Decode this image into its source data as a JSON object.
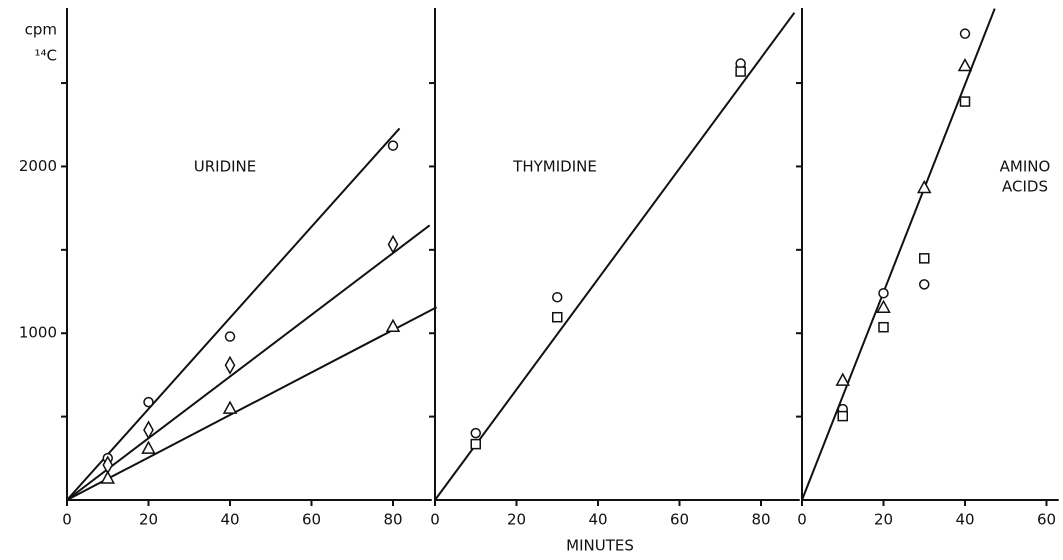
{
  "xlabel": "MINUTES",
  "chart_data": [
    {
      "type": "scatter",
      "label": [
        "URIDINE"
      ],
      "ylabel": [
        "cpm",
        "¹⁴C"
      ],
      "xlim": [
        0,
        89.5
      ],
      "xticks": [
        0,
        20,
        40,
        60,
        80
      ],
      "ylim": [
        0,
        2950
      ],
      "yticks": [
        1000,
        2000
      ],
      "yminor": [
        500,
        1500,
        2500
      ],
      "series": [
        {
          "marker": "circle",
          "color": "#111111",
          "x": [
            10,
            20,
            40,
            80
          ],
          "values": [
            251,
            587,
            980,
            2125
          ]
        },
        {
          "marker": "diamond",
          "color": "#111111",
          "x": [
            10,
            20,
            40,
            80
          ],
          "values": [
            210,
            420,
            808,
            1533
          ]
        },
        {
          "marker": "triangle",
          "color": "#111111",
          "x": [
            10,
            20,
            40,
            80
          ],
          "values": [
            132,
            311,
            551,
            1042
          ]
        }
      ],
      "fits": [
        {
          "x": [
            0,
            81.6
          ],
          "values": [
            0,
            2228
          ]
        },
        {
          "x": [
            0,
            89
          ],
          "values": [
            0,
            1647
          ]
        },
        {
          "x": [
            0,
            90.7
          ],
          "values": [
            0,
            1156
          ]
        }
      ]
    },
    {
      "type": "scatter",
      "label": [
        "THYMIDINE"
      ],
      "xlim": [
        0,
        89.5
      ],
      "xticks": [
        0,
        20,
        40,
        60,
        80
      ],
      "ylim": [
        0,
        2950
      ],
      "yminor": [
        500,
        1000,
        1500,
        2000,
        2500
      ],
      "series": [
        {
          "marker": "circle",
          "color": "#111111",
          "x": [
            10,
            30,
            75
          ],
          "values": [
            401,
            1216,
            2617
          ]
        },
        {
          "marker": "square",
          "color": "#111111",
          "x": [
            10,
            30,
            75
          ],
          "values": [
            335,
            1096,
            2569
          ]
        }
      ],
      "fits": [
        {
          "x": [
            0,
            88.2
          ],
          "values": [
            0,
            2922
          ]
        }
      ]
    },
    {
      "type": "scatter",
      "label": [
        "AMINO",
        "ACIDS"
      ],
      "xlim": [
        0,
        63
      ],
      "xticks": [
        0,
        20,
        40,
        60
      ],
      "ylim": [
        0,
        2950
      ],
      "yminor": [
        500,
        1000,
        1500,
        2000,
        2500
      ],
      "series": [
        {
          "marker": "circle",
          "color": "#111111",
          "x": [
            10,
            20,
            30,
            40
          ],
          "values": [
            545,
            1240,
            1293,
            2796
          ]
        },
        {
          "marker": "square",
          "color": "#111111",
          "x": [
            10,
            20,
            30,
            40
          ],
          "values": [
            503,
            1036,
            1449,
            2389
          ]
        },
        {
          "marker": "triangle",
          "color": "#111111",
          "x": [
            10,
            20,
            30,
            40
          ],
          "values": [
            719,
            1156,
            1874,
            2605
          ]
        }
      ],
      "fits": [
        {
          "x": [
            0,
            47.3
          ],
          "values": [
            0,
            2946
          ]
        }
      ]
    }
  ]
}
